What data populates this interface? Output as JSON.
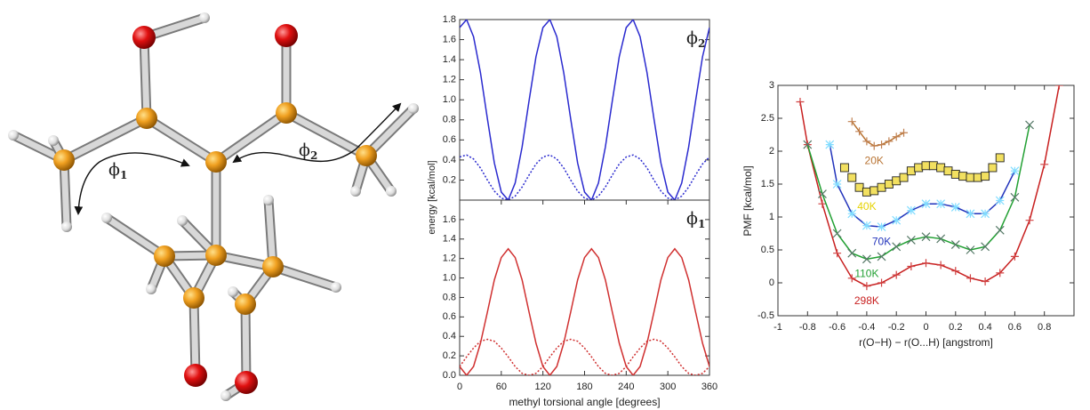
{
  "molecule": {
    "angle_labels": [
      [
        "ϕ",
        "1"
      ],
      [
        "ϕ",
        "2"
      ]
    ]
  },
  "chart_data": [
    {
      "type": "line",
      "annotation": [
        "ϕ",
        "2"
      ],
      "ylabel": "energy [kcal/mol]",
      "xlim": [
        0,
        360
      ],
      "ylim": [
        0,
        1.8
      ],
      "yticks": [
        0.2,
        0.4,
        0.6,
        0.8,
        {
          "value": 1,
          "label": "1.0"
        },
        1.2,
        1.4,
        1.6,
        1.8
      ],
      "x": [
        0,
        10,
        20,
        30,
        40,
        50,
        60,
        70,
        80,
        90,
        100,
        110,
        120,
        130,
        140,
        150,
        160,
        170,
        180,
        190,
        200,
        210,
        220,
        230,
        240,
        250,
        260,
        270,
        280,
        290,
        300,
        310,
        320,
        330,
        340,
        350,
        360
      ],
      "series": [
        {
          "color": "#2a2acf",
          "linestyle": "solid",
          "values": [
            1.72,
            1.8,
            1.63,
            1.27,
            0.81,
            0.37,
            0.08,
            0.0,
            0.17,
            0.53,
            0.99,
            1.43,
            1.72,
            1.8,
            1.63,
            1.27,
            0.81,
            0.37,
            0.08,
            0.0,
            0.17,
            0.53,
            0.99,
            1.43,
            1.72,
            1.8,
            1.63,
            1.27,
            0.81,
            0.37,
            0.08,
            0.0,
            0.17,
            0.53,
            0.99,
            1.43,
            1.72
          ]
        },
        {
          "color": "#2a2acf",
          "linestyle": "dotted",
          "values": [
            0.43,
            0.45,
            0.41,
            0.32,
            0.2,
            0.09,
            0.02,
            0.0,
            0.04,
            0.13,
            0.25,
            0.36,
            0.43,
            0.45,
            0.41,
            0.32,
            0.2,
            0.09,
            0.02,
            0.0,
            0.04,
            0.13,
            0.25,
            0.36,
            0.43,
            0.45,
            0.41,
            0.32,
            0.2,
            0.09,
            0.02,
            0.0,
            0.04,
            0.13,
            0.25,
            0.36,
            0.43
          ]
        }
      ]
    },
    {
      "type": "line",
      "annotation": [
        "ϕ",
        "1"
      ],
      "xlabel": "methyl torsional angle [degrees]",
      "xlim": [
        0,
        360
      ],
      "ylim": [
        0,
        1.8
      ],
      "xticks": [
        0,
        60,
        120,
        180,
        240,
        300,
        360
      ],
      "yticks": [
        {
          "value": 0,
          "label": "0.0"
        },
        0.2,
        0.4,
        0.6,
        0.8,
        {
          "value": 1,
          "label": "1.0"
        },
        1.2,
        1.4,
        1.6
      ],
      "x": [
        0,
        10,
        20,
        30,
        40,
        50,
        60,
        70,
        80,
        90,
        100,
        110,
        120,
        130,
        140,
        150,
        160,
        170,
        180,
        190,
        200,
        210,
        220,
        230,
        240,
        250,
        260,
        270,
        280,
        290,
        300,
        310,
        320,
        330,
        340,
        350,
        360
      ],
      "series": [
        {
          "color": "#d03030",
          "linestyle": "solid",
          "values": [
            0.09,
            0.0,
            0.09,
            0.33,
            0.65,
            0.98,
            1.21,
            1.3,
            1.21,
            0.98,
            0.65,
            0.33,
            0.09,
            0.0,
            0.09,
            0.33,
            0.65,
            0.98,
            1.21,
            1.3,
            1.21,
            0.98,
            0.65,
            0.33,
            0.09,
            0.0,
            0.09,
            0.33,
            0.65,
            0.98,
            1.21,
            1.3,
            1.21,
            0.98,
            0.65,
            0.33,
            0.09
          ]
        },
        {
          "color": "#d03030",
          "linestyle": "dotted",
          "values": [
            0.09,
            0.19,
            0.28,
            0.35,
            0.37,
            0.35,
            0.28,
            0.19,
            0.09,
            0.02,
            0.0,
            0.02,
            0.09,
            0.19,
            0.28,
            0.35,
            0.37,
            0.35,
            0.28,
            0.19,
            0.09,
            0.02,
            0.0,
            0.02,
            0.09,
            0.19,
            0.28,
            0.35,
            0.37,
            0.35,
            0.28,
            0.19,
            0.09,
            0.02,
            0.0,
            0.02,
            0.09
          ]
        }
      ]
    },
    {
      "type": "line",
      "ylabel": "PMF [kcal/mol]",
      "xlabel": "r(O−H) − r(O...H) [angstrom]",
      "xlim": [
        -1,
        1
      ],
      "ylim": [
        -0.5,
        3
      ],
      "xticks": [
        -1,
        -0.8,
        -0.6,
        -0.4,
        -0.2,
        0,
        0.2,
        0.4,
        0.6,
        0.8
      ],
      "yticks": [
        -0.5,
        0,
        0.5,
        1,
        1.5,
        2,
        2.5,
        3
      ],
      "series": [
        {
          "name": "298K",
          "color": "#c82020",
          "linestyle": "solid",
          "marker": "plus",
          "marker_color": "#d04040",
          "x": [
            -0.85,
            -0.8,
            -0.7,
            -0.6,
            -0.5,
            -0.4,
            -0.3,
            -0.2,
            -0.1,
            0,
            0.1,
            0.2,
            0.3,
            0.4,
            0.5,
            0.6,
            0.7,
            0.8,
            0.9
          ],
          "values": [
            2.75,
            2.1,
            1.2,
            0.45,
            0.07,
            -0.05,
            0.0,
            0.12,
            0.25,
            0.3,
            0.27,
            0.18,
            0.07,
            0.02,
            0.15,
            0.4,
            0.95,
            1.8,
            3.0
          ]
        },
        {
          "name": "110K",
          "color": "#22a033",
          "linestyle": "solid",
          "marker": "x",
          "marker_color": "#557766",
          "x": [
            -0.8,
            -0.7,
            -0.6,
            -0.5,
            -0.4,
            -0.3,
            -0.2,
            -0.1,
            0,
            0.1,
            0.2,
            0.3,
            0.4,
            0.5,
            0.6,
            0.7
          ],
          "values": [
            2.1,
            1.35,
            0.75,
            0.45,
            0.36,
            0.4,
            0.55,
            0.65,
            0.7,
            0.67,
            0.58,
            0.5,
            0.55,
            0.8,
            1.3,
            2.4
          ]
        },
        {
          "name": "70K",
          "color": "#2233bb",
          "linestyle": "solid",
          "marker": "star",
          "marker_color": "#80dcff",
          "x": [
            -0.65,
            -0.6,
            -0.5,
            -0.4,
            -0.3,
            -0.2,
            -0.1,
            0,
            0.1,
            0.2,
            0.3,
            0.4,
            0.5,
            0.6
          ],
          "values": [
            2.1,
            1.5,
            1.05,
            0.87,
            0.85,
            0.95,
            1.1,
            1.2,
            1.2,
            1.15,
            1.05,
            1.05,
            1.25,
            1.7
          ]
        },
        {
          "name": "40K",
          "color": "#e6d200",
          "linestyle": "none",
          "marker": "square",
          "marker_color": "#f2e060",
          "x": [
            -0.55,
            -0.5,
            -0.45,
            -0.4,
            -0.35,
            -0.3,
            -0.25,
            -0.2,
            -0.15,
            -0.1,
            -0.05,
            0,
            0.05,
            0.1,
            0.15,
            0.2,
            0.25,
            0.3,
            0.35,
            0.4,
            0.45,
            0.5
          ],
          "values": [
            1.75,
            1.6,
            1.45,
            1.38,
            1.4,
            1.45,
            1.5,
            1.55,
            1.6,
            1.7,
            1.75,
            1.78,
            1.78,
            1.75,
            1.7,
            1.65,
            1.62,
            1.6,
            1.6,
            1.62,
            1.75,
            1.9
          ]
        },
        {
          "name": "20K",
          "color": "#b87333",
          "linestyle": "solid",
          "marker": "plus",
          "marker_color": "#c08050",
          "x": [
            -0.5,
            -0.45,
            -0.4,
            -0.35,
            -0.3,
            -0.25,
            -0.2,
            -0.15
          ],
          "values": [
            2.45,
            2.3,
            2.15,
            2.08,
            2.1,
            2.15,
            2.22,
            2.28
          ]
        }
      ]
    }
  ]
}
